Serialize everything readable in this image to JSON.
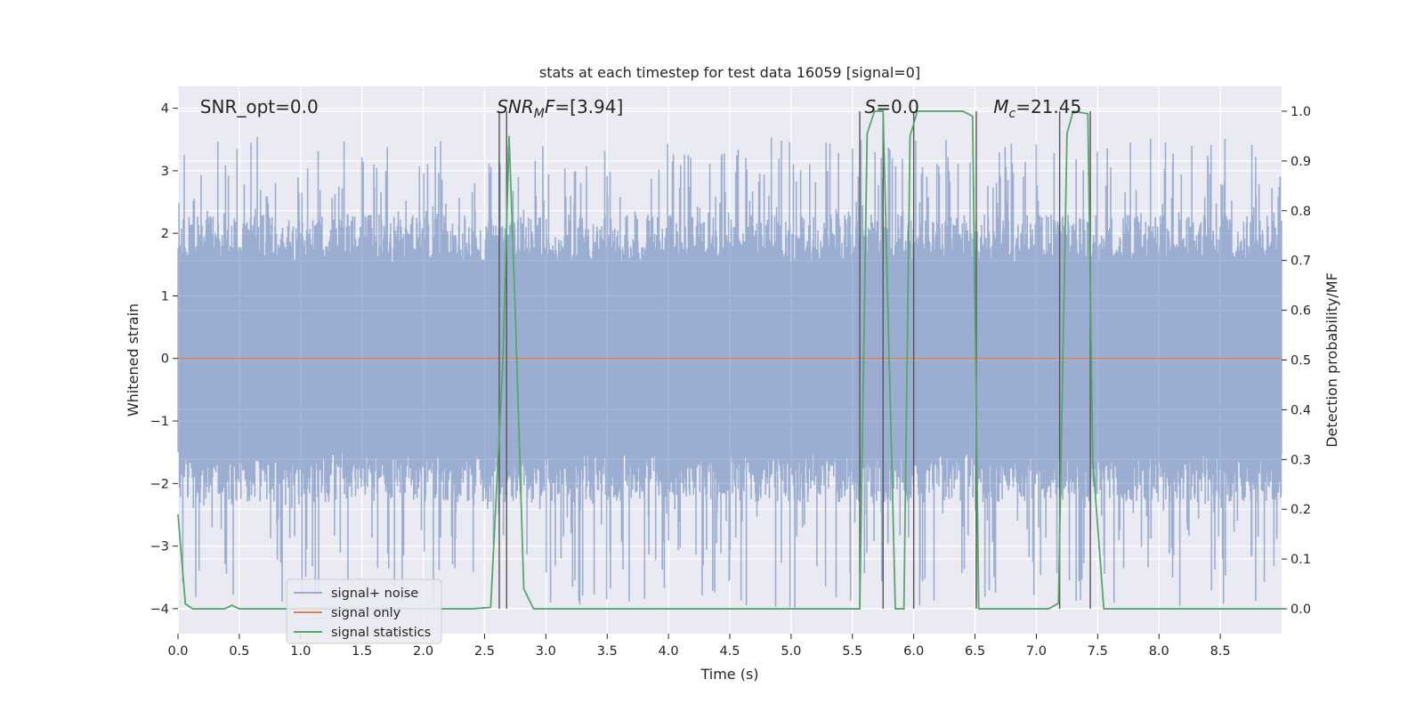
{
  "chart_data": {
    "type": "line",
    "title": "stats at each timestep for test data 16059 [signal=0]",
    "xlabel": "Time (s)",
    "ylabel": "Whitened strain",
    "ylabel_right": "Detection probability/MF",
    "xlim": [
      0.0,
      9.0
    ],
    "ylim": [
      -4.4,
      4.35
    ],
    "ylim_right": [
      -0.05,
      1.05
    ],
    "x_ticks": [
      0.0,
      0.5,
      1.0,
      1.5,
      2.0,
      2.5,
      3.0,
      3.5,
      4.0,
      4.5,
      5.0,
      5.5,
      6.0,
      6.5,
      7.0,
      7.5,
      8.0,
      8.5
    ],
    "x_tick_labels": [
      "0.0",
      "0.5",
      "1.0",
      "1.5",
      "2.0",
      "2.5",
      "3.0",
      "3.5",
      "4.0",
      "4.5",
      "5.0",
      "5.5",
      "6.0",
      "6.5",
      "7.0",
      "7.5",
      "8.0",
      "8.5"
    ],
    "y_ticks": [
      -4,
      -3,
      -2,
      -1,
      0,
      1,
      2,
      3,
      4
    ],
    "y_tick_labels": [
      "−4",
      "−3",
      "−2",
      "−1",
      "0",
      "1",
      "2",
      "3",
      "4"
    ],
    "y_right_ticks": [
      0.0,
      0.1,
      0.2,
      0.3,
      0.4,
      0.5,
      0.6,
      0.7,
      0.8,
      0.9,
      1.0
    ],
    "y_right_tick_labels": [
      "0.0",
      "0.1",
      "0.2",
      "0.3",
      "0.4",
      "0.5",
      "0.6",
      "0.7",
      "0.8",
      "0.9",
      "1.0"
    ],
    "grid": true,
    "legend_position": "lower-left",
    "annotations": [
      {
        "text": "SNR_opt=0.0",
        "x": 0.18,
        "y": 3.95
      },
      {
        "text": "SNRMF=[3.94]",
        "x": 2.6,
        "y": 3.95
      },
      {
        "text": "S=0.0",
        "x": 5.6,
        "y": 3.95
      },
      {
        "text": "Mc=21.45",
        "x": 6.65,
        "y": 3.95
      }
    ],
    "series": [
      {
        "name": "signal+ noise",
        "color": "#4c72b0",
        "opacity": 0.5,
        "noise": {
          "seed": 16059,
          "samples": 2300,
          "typical_max": 2.3,
          "typical_min": -2.3,
          "max": 3.55,
          "min": -4.0
        }
      },
      {
        "name": "signal only",
        "color": "#dd8452",
        "x": [
          0.0,
          9.0
        ],
        "y": [
          0.0,
          0.0
        ]
      },
      {
        "name": "signal statistics",
        "color": "#55a868",
        "axis": "right",
        "x": [
          0.0,
          0.06,
          0.12,
          0.2,
          0.38,
          0.44,
          0.5,
          2.4,
          2.55,
          2.65,
          2.7,
          2.75,
          2.82,
          2.9,
          5.56,
          5.62,
          5.68,
          5.75,
          5.85,
          5.92,
          5.97,
          6.03,
          6.08,
          6.15,
          6.4,
          6.48,
          6.53,
          6.58,
          6.65,
          7.1,
          7.18,
          7.25,
          7.3,
          7.42,
          7.46,
          7.55,
          7.62,
          9.0
        ],
        "y": [
          0.19,
          0.01,
          0.0,
          0.0,
          0.0,
          0.007,
          0.0,
          0.0,
          0.003,
          0.5,
          0.95,
          0.6,
          0.04,
          0.0,
          0.0,
          0.955,
          1.0,
          1.0,
          0.0,
          0.0,
          0.95,
          1.0,
          1.0,
          1.0,
          1.0,
          0.99,
          0.0,
          0.0,
          0.0,
          0.0,
          0.011,
          0.955,
          1.0,
          0.995,
          0.3,
          0.0,
          0.0,
          0.0
        ]
      }
    ],
    "vertical_lines": {
      "color": "#555555",
      "x": [
        2.62,
        2.68,
        5.56,
        5.75,
        6.0,
        6.51,
        7.19,
        7.44
      ],
      "y_range_right": [
        0.0,
        1.0
      ]
    }
  }
}
